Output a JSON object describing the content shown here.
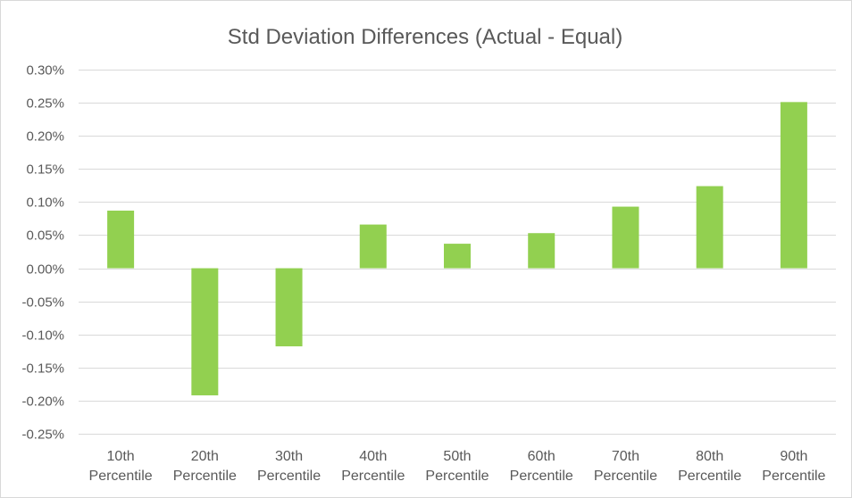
{
  "chart_data": {
    "type": "bar",
    "title": "Std Deviation Differences (Actual - Equal)",
    "categories": [
      [
        "10th",
        "Percentile"
      ],
      [
        "20th",
        "Percentile"
      ],
      [
        "30th",
        "Percentile"
      ],
      [
        "40th",
        "Percentile"
      ],
      [
        "50th",
        "Percentile"
      ],
      [
        "60th",
        "Percentile"
      ],
      [
        "70th",
        "Percentile"
      ],
      [
        "80th",
        "Percentile"
      ],
      [
        "90th",
        "Percentile"
      ]
    ],
    "values": [
      0.087,
      -0.192,
      -0.118,
      0.066,
      0.037,
      0.053,
      0.093,
      0.124,
      0.251
    ],
    "value_unit": "%",
    "ylim": [
      -0.25,
      0.3
    ],
    "ytick_step": 0.05,
    "yticks": [
      "0.30%",
      "0.25%",
      "0.20%",
      "0.15%",
      "0.10%",
      "0.05%",
      "0.00%",
      "-0.05%",
      "-0.10%",
      "-0.15%",
      "-0.20%",
      "-0.25%"
    ],
    "grid": true,
    "legend": false,
    "bar_color": "#92d050",
    "grid_color": "#d9d9d9"
  }
}
